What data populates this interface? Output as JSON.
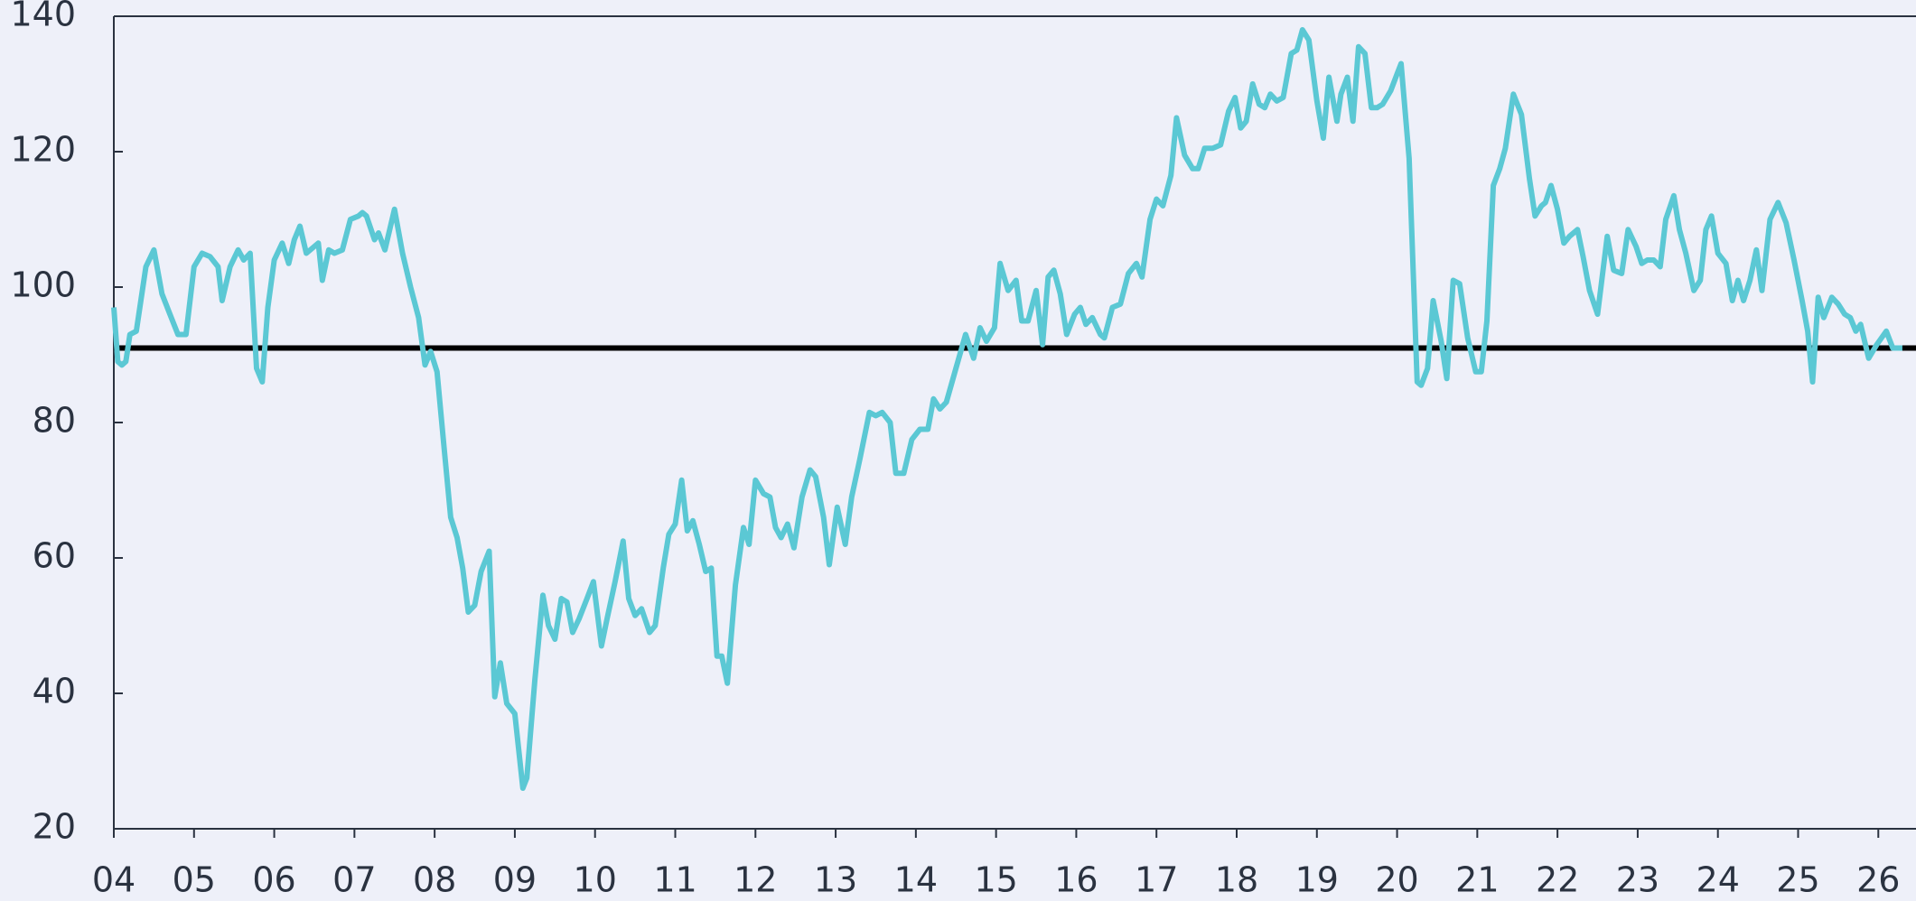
{
  "chart_data": {
    "type": "line",
    "x": [
      4.0,
      4.05,
      4.1,
      4.15,
      4.2,
      4.28,
      4.4,
      4.5,
      4.6,
      4.7,
      4.8,
      4.9,
      5.0,
      5.1,
      5.2,
      5.3,
      5.35,
      5.45,
      5.55,
      5.62,
      5.7,
      5.78,
      5.85,
      5.92,
      6.0,
      6.1,
      6.18,
      6.25,
      6.32,
      6.4,
      6.5,
      6.55,
      6.6,
      6.68,
      6.75,
      6.85,
      6.95,
      7.05,
      7.1,
      7.15,
      7.25,
      7.3,
      7.38,
      7.5,
      7.6,
      7.7,
      7.8,
      7.88,
      7.95,
      8.03,
      8.12,
      8.2,
      8.28,
      8.35,
      8.42,
      8.5,
      8.58,
      8.68,
      8.75,
      8.82,
      8.9,
      9.0,
      9.1,
      9.15,
      9.25,
      9.35,
      9.42,
      9.5,
      9.58,
      9.65,
      9.72,
      9.8,
      9.9,
      9.98,
      10.08,
      10.15,
      10.25,
      10.35,
      10.42,
      10.5,
      10.58,
      10.68,
      10.75,
      10.85,
      10.92,
      11.0,
      11.08,
      11.15,
      11.22,
      11.3,
      11.38,
      11.45,
      11.52,
      11.58,
      11.65,
      11.75,
      11.85,
      11.92,
      12.0,
      12.1,
      12.18,
      12.25,
      12.32,
      12.4,
      12.48,
      12.58,
      12.68,
      12.75,
      12.85,
      12.92,
      13.02,
      13.12,
      13.2,
      13.3,
      13.42,
      13.5,
      13.58,
      13.68,
      13.75,
      13.85,
      13.95,
      14.05,
      14.15,
      14.22,
      14.3,
      14.38,
      14.5,
      14.62,
      14.72,
      14.8,
      14.88,
      14.98,
      15.05,
      15.15,
      15.25,
      15.32,
      15.4,
      15.5,
      15.58,
      15.65,
      15.72,
      15.8,
      15.88,
      15.98,
      16.05,
      16.12,
      16.2,
      16.3,
      16.35,
      16.45,
      16.55,
      16.65,
      16.75,
      16.82,
      16.92,
      17.0,
      17.08,
      17.18,
      17.25,
      17.35,
      17.45,
      17.52,
      17.6,
      17.7,
      17.8,
      17.9,
      17.98,
      18.05,
      18.12,
      18.2,
      18.28,
      18.35,
      18.42,
      18.5,
      18.58,
      18.68,
      18.75,
      18.82,
      18.9,
      19.0,
      19.08,
      19.15,
      19.25,
      19.3,
      19.38,
      19.45,
      19.52,
      19.6,
      19.68,
      19.75,
      19.82,
      19.92,
      20.0,
      20.05,
      20.15,
      20.25,
      20.3,
      20.38,
      20.45,
      20.55,
      20.62,
      20.7,
      20.78,
      20.88,
      20.98,
      21.05,
      21.12,
      21.2,
      21.28,
      21.35,
      21.45,
      21.55,
      21.65,
      21.72,
      21.8,
      21.85,
      21.92,
      22.0,
      22.08,
      22.15,
      22.25,
      22.32,
      22.4,
      22.5,
      22.62,
      22.7,
      22.8,
      22.88,
      22.98,
      23.05,
      23.12,
      23.2,
      23.28,
      23.35,
      23.45,
      23.52,
      23.6,
      23.7,
      23.78,
      23.85,
      23.92,
      24.0,
      24.1,
      24.18,
      24.25,
      24.32,
      24.4,
      24.48,
      24.55,
      24.65,
      24.75,
      24.85,
      24.95,
      25.05,
      25.12,
      25.18,
      25.25,
      25.32,
      25.42,
      25.5,
      25.58,
      25.65,
      25.72,
      25.78,
      25.88,
      25.98,
      26.1,
      26.18,
      26.3
    ],
    "values": [
      97,
      89,
      88.5,
      89,
      93,
      93.5,
      103,
      105.5,
      99,
      96,
      93,
      93,
      103,
      105,
      104.5,
      103,
      98,
      103,
      105.5,
      104,
      105,
      88,
      86,
      97,
      104,
      106.5,
      103.5,
      107,
      109,
      105,
      106,
      106.5,
      101,
      105.5,
      105,
      105.5,
      110,
      110.5,
      111,
      110.5,
      107,
      108,
      105.5,
      111.5,
      105,
      100,
      95.5,
      88.5,
      90.5,
      87.5,
      76,
      66,
      63,
      58.5,
      52,
      53,
      58,
      61,
      39.5,
      44.5,
      38.5,
      37,
      26,
      27.5,
      42,
      54.5,
      50,
      48,
      54,
      53.5,
      49,
      51,
      54,
      56.5,
      47,
      51,
      56.5,
      62.5,
      54,
      51.5,
      52.5,
      49,
      50,
      58.5,
      63.5,
      65,
      71.5,
      64,
      65.5,
      62,
      58,
      58.5,
      45.5,
      45.5,
      41.5,
      56,
      64.5,
      62,
      71.5,
      69.5,
      69,
      64.5,
      63,
      65,
      61.5,
      69,
      73,
      72,
      66,
      59,
      67.5,
      62,
      69,
      74.5,
      81.5,
      81,
      81.5,
      80,
      72.5,
      72.5,
      77.5,
      79,
      79,
      83.5,
      82,
      83,
      88,
      93,
      89.5,
      94,
      92,
      94,
      103.5,
      99.5,
      101,
      95,
      95,
      99.5,
      91.5,
      101.5,
      102.5,
      99,
      93,
      96,
      97,
      94.5,
      95.5,
      93,
      92.5,
      97,
      97.5,
      102,
      103.5,
      101.5,
      110,
      113,
      112,
      116.5,
      125,
      119.5,
      117.5,
      117.5,
      120.5,
      120.5,
      121,
      126,
      128,
      123.5,
      124.5,
      130,
      127,
      126.5,
      128.5,
      127.5,
      128,
      134.5,
      135,
      138,
      136.5,
      127.5,
      122,
      131,
      124.5,
      128.5,
      131,
      124.5,
      135.5,
      134.5,
      126.5,
      126.5,
      127,
      129,
      131.5,
      133,
      119,
      86,
      85.5,
      88,
      98,
      92,
      86.5,
      101,
      100.5,
      92.5,
      87.5,
      87.5,
      95,
      115,
      117.5,
      120.5,
      128.5,
      125.5,
      116,
      110.5,
      112,
      112.5,
      115,
      111.5,
      106.5,
      107.5,
      108.5,
      104.5,
      99.5,
      96,
      107.5,
      102.5,
      102,
      108.5,
      106,
      103.5,
      104,
      104,
      103,
      110,
      113.5,
      108.5,
      105,
      99.5,
      101,
      108.5,
      110.5,
      105,
      103.5,
      98,
      101,
      98,
      101,
      105.5,
      99.5,
      110,
      112.5,
      109.5,
      104,
      98,
      93.5,
      86,
      98.5,
      95.5,
      98.5,
      97.5,
      96,
      95.5,
      93.5,
      94.5,
      89.5,
      91.5,
      93.5,
      91,
      91
    ],
    "color": "#5bc8d4",
    "reference_line": {
      "value": 91,
      "color": "#000000"
    },
    "xlim": [
      4.0,
      26.47
    ],
    "xticks": [
      {
        "value": 4,
        "label": "04"
      },
      {
        "value": 5,
        "label": "05"
      },
      {
        "value": 6,
        "label": "06"
      },
      {
        "value": 7,
        "label": "07"
      },
      {
        "value": 8,
        "label": "08"
      },
      {
        "value": 9,
        "label": "09"
      },
      10,
      11,
      12,
      13,
      14,
      15,
      16,
      17,
      18,
      19,
      20,
      21,
      22,
      23,
      24,
      25,
      26
    ],
    "ylim": [
      20,
      140
    ],
    "yticks": [
      20,
      40,
      60,
      80,
      100,
      120,
      140
    ],
    "grid": false
  }
}
